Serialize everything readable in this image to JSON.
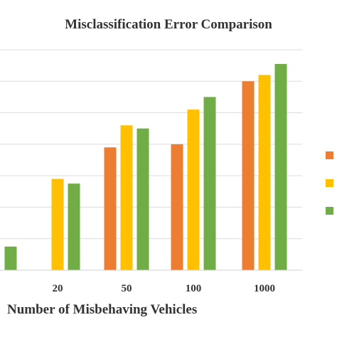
{
  "chart_data": {
    "type": "bar",
    "title": "Misclassification Error Comparison",
    "xlabel": "Number of Misbehaving Vehicles",
    "ylabel": "",
    "categories": [
      "",
      "20",
      "50",
      "100",
      "1000"
    ],
    "series": [
      {
        "color": "#ED7D31",
        "values": [
          null,
          null,
          3.9,
          4.0,
          6.0
        ]
      },
      {
        "color": "#FFC000",
        "values": [
          null,
          2.9,
          4.6,
          5.1,
          6.2
        ]
      },
      {
        "color": "#70AD47",
        "values": [
          0.75,
          2.75,
          4.5,
          5.5,
          6.55
        ]
      }
    ],
    "ylim": [
      0,
      7
    ],
    "grid": true,
    "legend": "right"
  }
}
